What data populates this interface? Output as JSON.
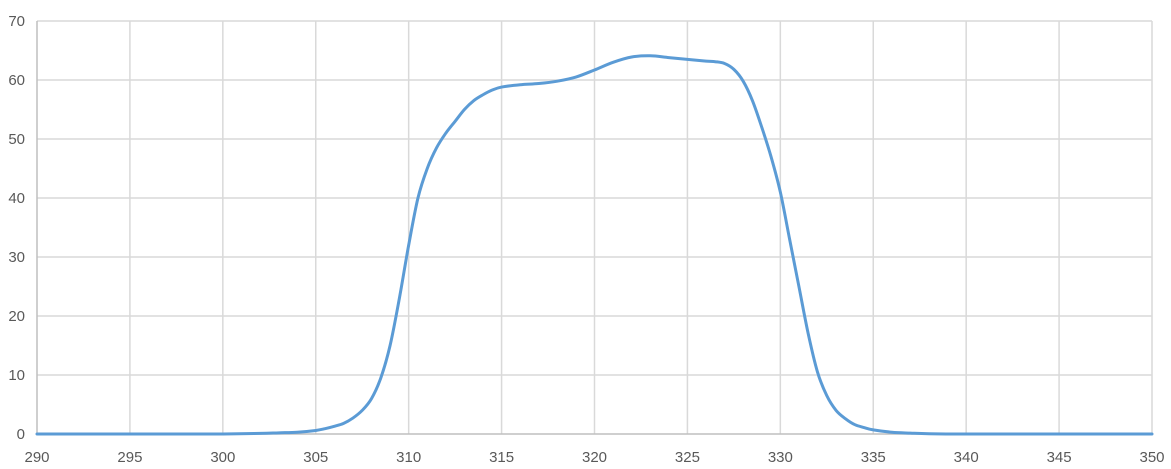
{
  "chart_data": {
    "type": "line",
    "title": "",
    "xlabel": "",
    "ylabel": "",
    "xlim": [
      290,
      350
    ],
    "ylim": [
      0,
      70
    ],
    "x_ticks": [
      290,
      295,
      300,
      305,
      310,
      315,
      320,
      325,
      330,
      335,
      340,
      345,
      350
    ],
    "y_ticks": [
      0,
      10,
      20,
      30,
      40,
      50,
      60,
      70
    ],
    "x_tick_labels": [
      "290",
      "295",
      "300",
      "305",
      "310",
      "315",
      "320",
      "325",
      "330",
      "335",
      "340",
      "345",
      "350"
    ],
    "y_tick_labels": [
      "0",
      "10",
      "20",
      "30",
      "40",
      "50",
      "60",
      "70"
    ],
    "grid": true,
    "legend": "none",
    "colors": {
      "line": "#5b9bd5",
      "grid": "#d9d9d9",
      "axis": "#bfbfbf",
      "tick_text": "#595959"
    },
    "series": [
      {
        "x": [
          290,
          295,
          300,
          302,
          303,
          304,
          305,
          305.5,
          306,
          306.5,
          307,
          307.5,
          308,
          308.5,
          309,
          309.5,
          310,
          310.5,
          311,
          311.5,
          312,
          312.5,
          313,
          313.5,
          314,
          314.5,
          315,
          316,
          317,
          318,
          319,
          320,
          321,
          322,
          323,
          324,
          325,
          326,
          326.5,
          327,
          327.5,
          328,
          328.5,
          329,
          329.5,
          330,
          330.5,
          331,
          331.5,
          332,
          332.5,
          333,
          333.5,
          334,
          334.5,
          335,
          336,
          337,
          338,
          340,
          345,
          350
        ],
        "y": [
          0,
          0,
          0,
          0.1,
          0.2,
          0.3,
          0.6,
          0.9,
          1.3,
          1.8,
          2.7,
          4,
          6,
          9.5,
          15,
          23,
          32,
          40,
          45,
          48.5,
          51,
          53,
          55,
          56.5,
          57.5,
          58.3,
          58.8,
          59.2,
          59.4,
          59.8,
          60.5,
          61.7,
          63,
          63.9,
          64.1,
          63.8,
          63.5,
          63.2,
          63.1,
          62.8,
          61.8,
          59.8,
          56.5,
          52,
          47,
          41,
          33,
          25,
          17,
          10.5,
          6.5,
          4,
          2.6,
          1.6,
          1.1,
          0.7,
          0.3,
          0.15,
          0.05,
          0,
          0,
          0
        ]
      }
    ]
  }
}
